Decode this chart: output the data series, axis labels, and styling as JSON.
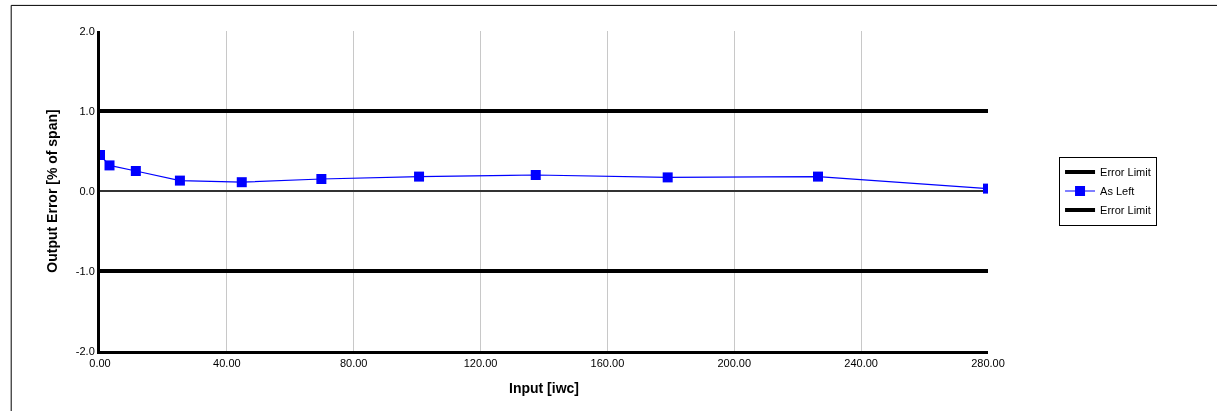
{
  "chart_data": {
    "type": "line",
    "xlabel": "Input [iwc]",
    "ylabel": "Output Error [% of span]",
    "xlim": [
      0,
      280
    ],
    "ylim": [
      -2,
      2
    ],
    "xticks": [
      {
        "value": 0,
        "label": "0.00"
      },
      {
        "value": 40,
        "label": "40.00"
      },
      {
        "value": 80,
        "label": "80.00"
      },
      {
        "value": 120,
        "label": "120.00"
      },
      {
        "value": 160,
        "label": "160.00"
      },
      {
        "value": 200,
        "label": "200.00"
      },
      {
        "value": 240,
        "label": "240.00"
      },
      {
        "value": 280,
        "label": "280.00"
      }
    ],
    "yticks": [
      {
        "value": -2,
        "label": "-2.0"
      },
      {
        "value": -1,
        "label": "-1.0"
      },
      {
        "value": 0,
        "label": "0.0"
      },
      {
        "value": 1,
        "label": "1.0"
      },
      {
        "value": 2,
        "label": "2.0"
      }
    ],
    "grid": "x",
    "legend": "right",
    "series": [
      {
        "name": "Error Limit",
        "color": "#000000",
        "x": [
          0,
          280
        ],
        "values": [
          1,
          1
        ],
        "marker": "none"
      },
      {
        "name": "As Left",
        "color": "#0000ff",
        "marker": "square",
        "x": [
          0,
          3.0,
          11.3,
          25.2,
          44.7,
          69.8,
          100.6,
          137.4,
          179,
          226.4,
          280
        ],
        "values": [
          0.45,
          0.32,
          0.25,
          0.13,
          0.11,
          0.15,
          0.18,
          0.2,
          0.17,
          0.18,
          0.03
        ]
      },
      {
        "name": "Error Limit",
        "color": "#000000",
        "x": [
          0,
          280
        ],
        "values": [
          -1,
          -1
        ],
        "marker": "none"
      }
    ]
  }
}
